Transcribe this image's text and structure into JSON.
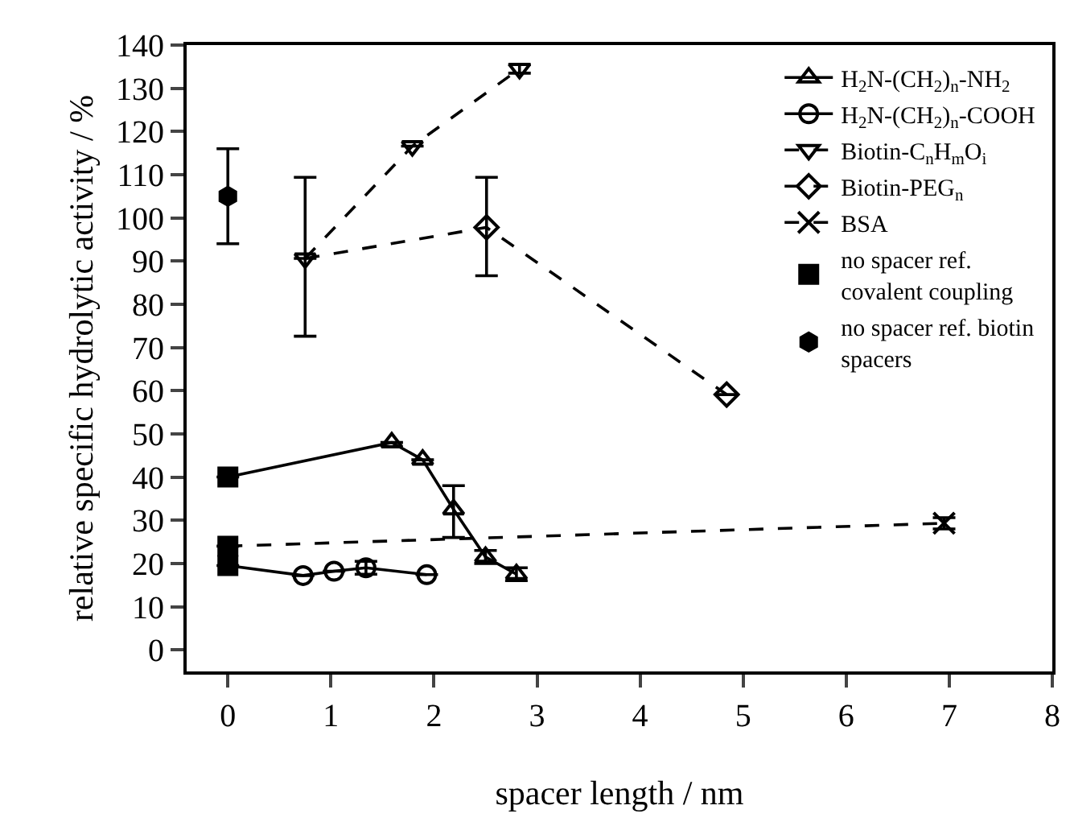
{
  "chart_data": {
    "type": "line",
    "xlabel": "spacer length / nm",
    "ylabel": "relative specific hydrolytic activity / %",
    "xlim": [
      -0.4,
      8
    ],
    "xticks": [
      0,
      1,
      2,
      3,
      4,
      5,
      6,
      7,
      8
    ],
    "ylim": [
      -5,
      140
    ],
    "yticks": [
      0,
      10,
      20,
      30,
      40,
      50,
      60,
      70,
      80,
      90,
      100,
      110,
      120,
      130,
      140
    ],
    "legend": "top right",
    "series": [
      {
        "name": "H$_{2}$N-(CH$_{2}$)$_{n}$-NH$_{2}$",
        "color": "#000000",
        "marker": [
          "none",
          "triangle",
          "triangle",
          "triangle",
          "triangle",
          "triangle"
        ],
        "line_style": "solid",
        "x": [
          0,
          1.59,
          1.89,
          2.19,
          2.5,
          2.8
        ],
        "values": [
          40,
          48,
          44,
          32.5,
          21.5,
          17.5
        ],
        "errors": [
          null,
          null,
          null,
          [
            26,
            38
          ],
          [
            20,
            23
          ],
          [
            16,
            19
          ]
        ]
      },
      {
        "name": "H$_{2}$N-(CH$_{2}$)$_{n}$-COOH",
        "color": "#000000",
        "marker": [
          "none",
          "circle",
          "circle",
          "circle",
          "circle"
        ],
        "line_style": "solid",
        "x": [
          0,
          0.73,
          1.03,
          1.34,
          1.93
        ],
        "values": [
          19.5,
          17.2,
          18.2,
          19,
          17.4
        ],
        "errors": [
          null,
          null,
          null,
          [
            17.5,
            20.5
          ],
          null
        ]
      },
      {
        "name": "Biotin-C$_{n}$H$_{m}$O$_{i}$",
        "color": "#000000",
        "marker": [
          "triangle-down",
          "triangle-down",
          "triangle-down"
        ],
        "line_style": "dashed",
        "x": [
          0.75,
          1.79,
          2.83
        ],
        "values": [
          90.6,
          116.6,
          134.5
        ],
        "errors": [
          [
            72.6,
            109.4
          ],
          null,
          [
            133.5,
            135.5
          ]
        ]
      },
      {
        "name": "Biotin-PEG$_{n}$",
        "color": "#000000",
        "marker": [
          "none",
          "diamond",
          "diamond"
        ],
        "line_style": "dashed",
        "x": [
          0.75,
          2.51,
          4.84
        ],
        "values": [
          90.6,
          97.8,
          59.1
        ],
        "errors": [
          null,
          [
            86.6,
            109.4
          ],
          null
        ]
      },
      {
        "name": "BSA",
        "color": "#000000",
        "marker": [
          "none",
          "cross"
        ],
        "line_style": "dashed",
        "x": [
          0,
          6.95
        ],
        "values": [
          24,
          29.3
        ],
        "errors": [
          null,
          [
            28,
            30.6
          ]
        ]
      },
      {
        "name": "no spacer ref.\ncovalent coupling",
        "color": "#000000",
        "type": "scatter",
        "marker": [
          "square",
          "square",
          "square"
        ],
        "x": [
          0,
          0,
          0
        ],
        "values": [
          40,
          24,
          19.5
        ]
      },
      {
        "name": "no spacer ref. biotin\nspacers",
        "color": "#000000",
        "type": "scatter",
        "marker": [
          "hexagon"
        ],
        "x": [
          0
        ],
        "values": [
          105
        ],
        "errors": [
          [
            94,
            116
          ]
        ]
      }
    ]
  }
}
